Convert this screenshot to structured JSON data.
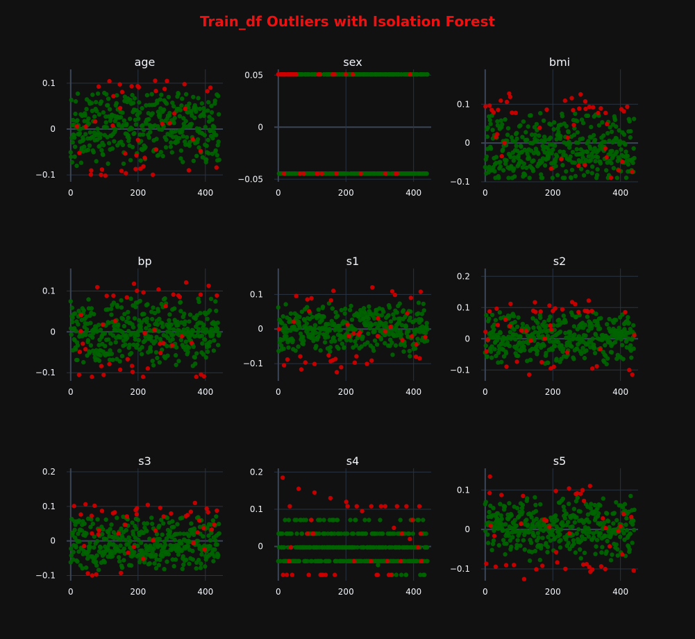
{
  "title": "Train_df Outliers with Isolation Forest",
  "colors": {
    "background": "#111111",
    "grid": "#283442",
    "zeroline": "#3a4658",
    "axis_line": "#506784",
    "inlier": "#006400",
    "outlier": "#cc0000",
    "title": "#ee1111",
    "text": "#f2f5fa"
  },
  "chart_data": [
    {
      "type": "scatter",
      "title": "age",
      "xlim": [
        -12,
        452
      ],
      "ylim": [
        -0.115,
        0.13
      ],
      "xticks": [
        0,
        200,
        400
      ],
      "xtick_labels": [
        "0",
        "200",
        "400"
      ],
      "yticks": [
        -0.1,
        0,
        0.1
      ],
      "ytick_labels": [
        "−0.1",
        "0",
        "0.1"
      ],
      "mode": "uniform",
      "n": 442,
      "value_range": [
        -0.107,
        0.111
      ],
      "outlier_count": 45,
      "seed": 11,
      "series": [
        {
          "name": "inlier"
        },
        {
          "name": "outlier"
        }
      ]
    },
    {
      "type": "scatter",
      "title": "sex",
      "xlim": [
        -12,
        452
      ],
      "ylim": [
        -0.0525,
        0.0555
      ],
      "xticks": [
        0,
        200,
        400
      ],
      "xtick_labels": [
        "0",
        "200",
        "400"
      ],
      "yticks": [
        -0.05,
        0,
        0.05
      ],
      "ytick_labels": [
        "−0.05",
        "0",
        "0.05"
      ],
      "mode": "levels",
      "levels": [
        0.0507,
        -0.0446
      ],
      "level_weights": [
        0.47,
        0.53
      ],
      "n": 442,
      "outlier_count": 45,
      "seed": 23,
      "series": [
        {
          "name": "inlier"
        },
        {
          "name": "outlier"
        }
      ]
    },
    {
      "type": "scatter",
      "title": "bmi",
      "xlim": [
        -12,
        452
      ],
      "ylim": [
        -0.1,
        0.19
      ],
      "xticks": [
        0,
        200,
        400
      ],
      "xtick_labels": [
        "0",
        "200",
        "400"
      ],
      "yticks": [
        -0.1,
        0,
        0.1
      ],
      "ytick_labels": [
        "−0.1",
        "0",
        "0.1"
      ],
      "mode": "skew",
      "center": -0.02,
      "spread": 0.045,
      "value_range": [
        -0.09,
        0.17
      ],
      "n": 442,
      "outlier_count": 45,
      "seed": 37,
      "series": [
        {
          "name": "inlier"
        },
        {
          "name": "outlier"
        }
      ]
    },
    {
      "type": "scatter",
      "title": "bp",
      "xlim": [
        -12,
        452
      ],
      "ylim": [
        -0.12,
        0.155
      ],
      "xticks": [
        0,
        200,
        400
      ],
      "xtick_labels": [
        "0",
        "200",
        "400"
      ],
      "yticks": [
        -0.1,
        0,
        0.1
      ],
      "ytick_labels": [
        "−0.1",
        "0",
        "0.1"
      ],
      "mode": "normal",
      "center": 0.0,
      "spread": 0.045,
      "value_range": [
        -0.11,
        0.133
      ],
      "n": 442,
      "outlier_count": 45,
      "seed": 41,
      "series": [
        {
          "name": "inlier"
        },
        {
          "name": "outlier"
        }
      ]
    },
    {
      "type": "scatter",
      "title": "s1",
      "xlim": [
        -12,
        452
      ],
      "ylim": [
        -0.15,
        0.175
      ],
      "xticks": [
        0,
        200,
        400
      ],
      "xtick_labels": [
        "0",
        "200",
        "400"
      ],
      "yticks": [
        -0.1,
        0,
        0.1
      ],
      "ytick_labels": [
        "−0.1",
        "0",
        "0.1"
      ],
      "mode": "normal",
      "center": 0.0,
      "spread": 0.044,
      "value_range": [
        -0.127,
        0.155
      ],
      "n": 442,
      "outlier_count": 45,
      "seed": 53,
      "series": [
        {
          "name": "inlier"
        },
        {
          "name": "outlier"
        }
      ]
    },
    {
      "type": "scatter",
      "title": "s2",
      "xlim": [
        -12,
        452
      ],
      "ylim": [
        -0.135,
        0.225
      ],
      "xticks": [
        0,
        200,
        400
      ],
      "xtick_labels": [
        "0",
        "200",
        "400"
      ],
      "yticks": [
        -0.1,
        0,
        0.1,
        0.2
      ],
      "ytick_labels": [
        "−0.1",
        "0",
        "0.1",
        "0.2"
      ],
      "mode": "normal",
      "center": 0.0,
      "spread": 0.044,
      "value_range": [
        -0.115,
        0.199
      ],
      "n": 442,
      "outlier_count": 45,
      "seed": 67,
      "series": [
        {
          "name": "inlier"
        },
        {
          "name": "outlier"
        }
      ]
    },
    {
      "type": "scatter",
      "title": "s3",
      "xlim": [
        -12,
        452
      ],
      "ylim": [
        -0.115,
        0.21
      ],
      "xticks": [
        0,
        200,
        400
      ],
      "xtick_labels": [
        "0",
        "200",
        "400"
      ],
      "yticks": [
        -0.1,
        0,
        0.1,
        0.2
      ],
      "ytick_labels": [
        "−0.1",
        "0",
        "0.1",
        "0.2"
      ],
      "mode": "skew",
      "center": -0.01,
      "spread": 0.04,
      "value_range": [
        -0.1,
        0.18
      ],
      "n": 442,
      "outlier_count": 45,
      "seed": 79,
      "series": [
        {
          "name": "inlier"
        },
        {
          "name": "outlier"
        }
      ]
    },
    {
      "type": "scatter",
      "title": "s4",
      "xlim": [
        -12,
        452
      ],
      "ylim": [
        -0.092,
        0.21
      ],
      "xticks": [
        0,
        200,
        400
      ],
      "xtick_labels": [
        "0",
        "200",
        "400"
      ],
      "yticks": [
        0,
        0.1,
        0.2
      ],
      "ytick_labels": [
        "0",
        "0.1",
        "0.2"
      ],
      "mode": "levels",
      "levels": [
        -0.0395,
        -0.0026,
        0.0343,
        0.0712,
        -0.0763,
        0.108
      ],
      "level_weights": [
        0.34,
        0.33,
        0.14,
        0.1,
        0.06,
        0.03
      ],
      "extras": [
        0.185,
        0.155,
        0.145,
        0.13,
        0.12,
        0.095,
        -0.05,
        0.05,
        0.02
      ],
      "n": 442,
      "outlier_count": 45,
      "seed": 83,
      "series": [
        {
          "name": "inlier"
        },
        {
          "name": "outlier"
        }
      ]
    },
    {
      "type": "scatter",
      "title": "s5",
      "xlim": [
        -12,
        452
      ],
      "ylim": [
        -0.13,
        0.155
      ],
      "xticks": [
        0,
        200,
        400
      ],
      "xtick_labels": [
        "0",
        "200",
        "400"
      ],
      "yticks": [
        -0.1,
        0,
        0.1
      ],
      "ytick_labels": [
        "−0.1",
        "0",
        "0.1"
      ],
      "mode": "normal",
      "center": 0.0,
      "spread": 0.045,
      "value_range": [
        -0.126,
        0.134
      ],
      "n": 442,
      "outlier_count": 45,
      "seed": 97,
      "series": [
        {
          "name": "inlier"
        },
        {
          "name": "outlier"
        }
      ]
    }
  ]
}
